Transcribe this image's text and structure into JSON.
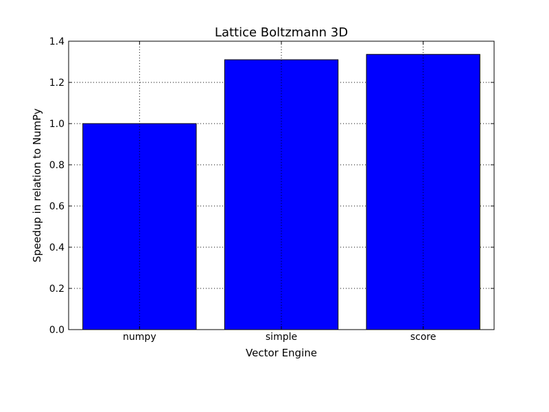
{
  "chart_data": {
    "type": "bar",
    "title": "Lattice Boltzmann 3D",
    "xlabel": "Vector Engine",
    "ylabel": "Speedup in relation to NumPy",
    "categories": [
      "numpy",
      "simple",
      "score"
    ],
    "values": [
      1.0,
      1.31,
      1.336
    ],
    "ylim": [
      0,
      1.4
    ],
    "yticks": [
      "0.0",
      "0.2",
      "0.4",
      "0.6",
      "0.8",
      "1.0",
      "1.2",
      "1.4"
    ],
    "grid": true,
    "bar_color": "#0000ff",
    "edge_color": "#000000"
  }
}
